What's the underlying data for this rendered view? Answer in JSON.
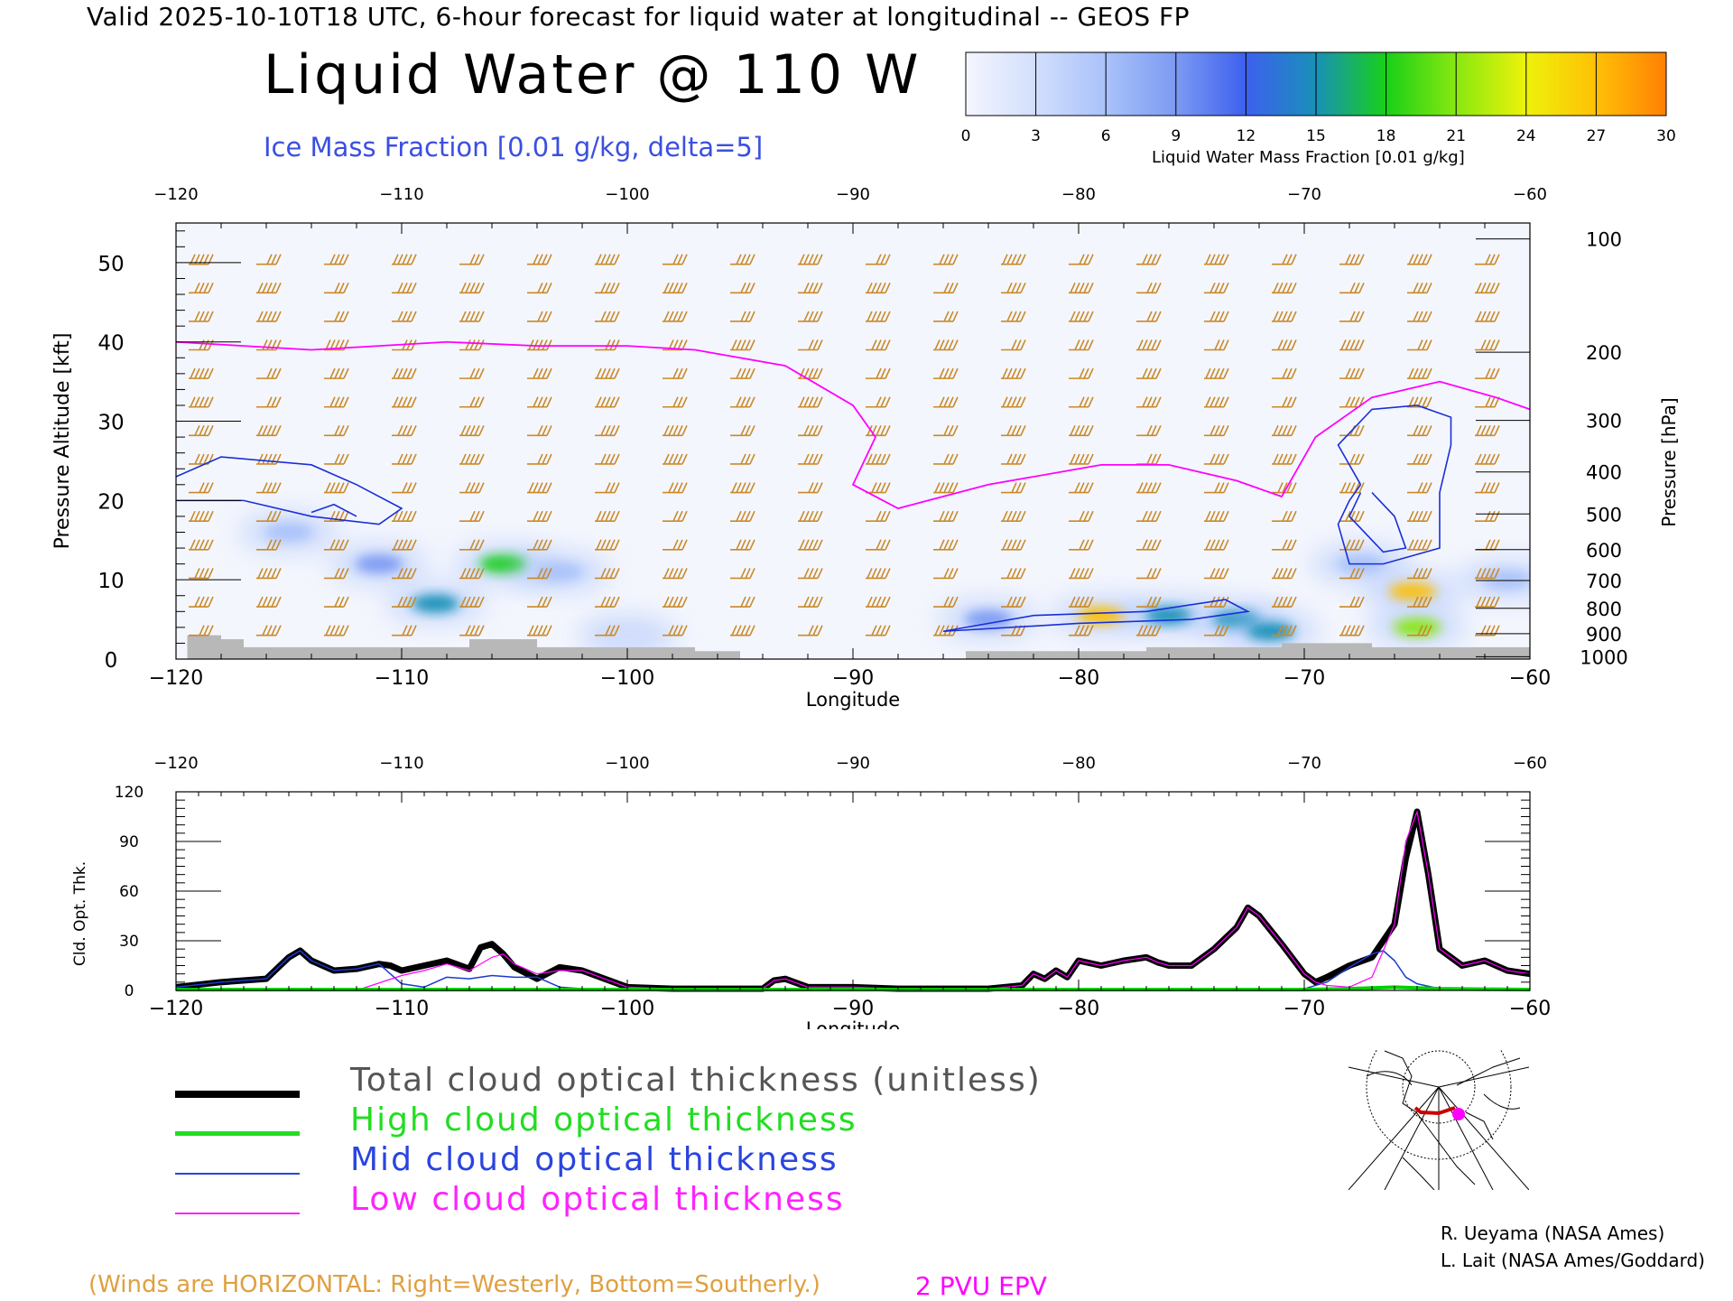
{
  "header": {
    "valid_line": "Valid 2025-10-10T18 UTC, 6-hour forecast for liquid water at longitudinal -- GEOS FP",
    "title": "Liquid Water @ 110 W",
    "ice_caption": "Ice Mass Fraction [0.01 g/kg, delta=5]"
  },
  "colorbar": {
    "ticks": [
      "0",
      "3",
      "6",
      "9",
      "12",
      "15",
      "18",
      "21",
      "24",
      "27",
      "30"
    ],
    "label": "Liquid Water Mass Fraction [0.01 g/kg]",
    "colors": [
      "#f4f6fe",
      "#d2defc",
      "#a9c2fa",
      "#7c9af2",
      "#3d60ef",
      "#1890b8",
      "#18d018",
      "#88e810",
      "#eef20a",
      "#ffc006",
      "#ff8004"
    ]
  },
  "chart_data": [
    {
      "type": "heatmap",
      "xlabel": "Longitude",
      "ylabel_left": "Pressure Altitude [kft]",
      "ylabel_right": "Pressure [hPa]",
      "xlim": [
        -120,
        -60
      ],
      "ylim": [
        0,
        55
      ],
      "x_ticks": [
        -120,
        -110,
        -100,
        -90,
        -80,
        -70,
        -60
      ],
      "x_tick_labels": [
        "−120",
        "−110",
        "−100",
        "−90",
        "−80",
        "−70",
        "−60"
      ],
      "y_ticks": [
        0,
        10,
        20,
        30,
        40,
        50
      ],
      "pressure_ticks": [
        {
          "hPa": "100",
          "kft": 53.0
        },
        {
          "hPa": "200",
          "kft": 38.7
        },
        {
          "hPa": "300",
          "kft": 30.1
        },
        {
          "hPa": "400",
          "kft": 23.6
        },
        {
          "hPa": "500",
          "kft": 18.3
        },
        {
          "hPa": "600",
          "kft": 13.8
        },
        {
          "hPa": "700",
          "kft": 9.9
        },
        {
          "hPa": "800",
          "kft": 6.4
        },
        {
          "hPa": "900",
          "kft": 3.2
        },
        {
          "hPa": "1000",
          "kft": 0.3
        }
      ],
      "liquid_water_blobs": [
        {
          "lon": -115,
          "kft": 16,
          "value": 6
        },
        {
          "lon": -111,
          "kft": 12,
          "value": 9
        },
        {
          "lon": -108.5,
          "kft": 7,
          "value": 16
        },
        {
          "lon": -105.5,
          "kft": 12,
          "value": 18
        },
        {
          "lon": -103,
          "kft": 11,
          "value": 6
        },
        {
          "lon": -100,
          "kft": 3,
          "value": 3
        },
        {
          "lon": -84,
          "kft": 5,
          "value": 9
        },
        {
          "lon": -79,
          "kft": 5.5,
          "value": 26
        },
        {
          "lon": -76,
          "kft": 5.5,
          "value": 16
        },
        {
          "lon": -73,
          "kft": 5,
          "value": 14
        },
        {
          "lon": -71.5,
          "kft": 3.5,
          "value": 16
        },
        {
          "lon": -67.5,
          "kft": 12,
          "value": 6
        },
        {
          "lon": -65.2,
          "kft": 8.5,
          "value": 26
        },
        {
          "lon": -65,
          "kft": 4,
          "value": 20
        },
        {
          "lon": -61,
          "kft": 10,
          "value": 6
        }
      ],
      "ice_contours": [
        {
          "points": [
            [
              -120,
              23
            ],
            [
              -118,
              25.5
            ],
            [
              -114,
              24.5
            ],
            [
              -112,
              22
            ],
            [
              -110,
              19
            ],
            [
              -111,
              17
            ],
            [
              -114,
              18
            ],
            [
              -117,
              20
            ],
            [
              -120,
              20
            ]
          ]
        },
        {
          "points": [
            [
              -114,
              18.5
            ],
            [
              -113,
              19.5
            ],
            [
              -112,
              18
            ]
          ]
        },
        {
          "points": [
            [
              -67.5,
              22
            ],
            [
              -68.5,
              27
            ],
            [
              -67,
              31.5
            ],
            [
              -65,
              32
            ],
            [
              -63.5,
              30.5
            ],
            [
              -63.5,
              27
            ],
            [
              -64,
              21
            ],
            [
              -64,
              14
            ],
            [
              -66.5,
              12
            ],
            [
              -68,
              12
            ],
            [
              -68.5,
              17
            ],
            [
              -68,
              20
            ],
            [
              -67.5,
              22
            ]
          ]
        },
        {
          "points": [
            [
              -67.5,
              21
            ],
            [
              -68,
              18
            ],
            [
              -66.5,
              13.5
            ],
            [
              -65.5,
              14
            ],
            [
              -66,
              18
            ],
            [
              -67,
              21
            ]
          ]
        },
        {
          "points": [
            [
              -86,
              3.5
            ],
            [
              -82,
              5.5
            ],
            [
              -77,
              6
            ],
            [
              -73.5,
              7.5
            ],
            [
              -72.5,
              6
            ],
            [
              -75,
              5
            ],
            [
              -80,
              4.5
            ],
            [
              -86,
              3.5
            ]
          ]
        }
      ],
      "epv_2pvu": [
        [
          -120,
          40
        ],
        [
          -117,
          39.5
        ],
        [
          -114,
          39
        ],
        [
          -111,
          39.5
        ],
        [
          -108,
          40
        ],
        [
          -104,
          39.5
        ],
        [
          -100,
          39.5
        ],
        [
          -97,
          39
        ],
        [
          -93,
          37
        ],
        [
          -90,
          32
        ],
        [
          -89,
          28
        ],
        [
          -90,
          22
        ],
        [
          -88,
          19
        ],
        [
          -84,
          22
        ],
        [
          -79,
          24.5
        ],
        [
          -76,
          24.5
        ],
        [
          -73,
          22.5
        ],
        [
          -71,
          20.5
        ],
        [
          -69.5,
          28
        ],
        [
          -67,
          33
        ],
        [
          -64,
          35
        ],
        [
          -61.5,
          33
        ],
        [
          -60,
          31.5
        ]
      ],
      "wind_barb_columns": [
        -119,
        -116,
        -113,
        -110,
        -107,
        -104,
        -101,
        -98,
        -95,
        -92,
        -89,
        -86,
        -83,
        -80,
        -77,
        -74,
        -71,
        -68,
        -65,
        -62
      ],
      "terrain_kft": [
        [
          -120,
          0
        ],
        [
          -119.5,
          3
        ],
        [
          -118,
          2.5
        ],
        [
          -117,
          1.5
        ],
        [
          -114,
          1.5
        ],
        [
          -110,
          1.5
        ],
        [
          -107,
          2.5
        ],
        [
          -104,
          1.5
        ],
        [
          -99,
          1.5
        ],
        [
          -97,
          1
        ],
        [
          -95,
          0
        ],
        [
          -85,
          1
        ],
        [
          -77,
          1.5
        ],
        [
          -71,
          2
        ],
        [
          -67,
          1.5
        ],
        [
          -62,
          1.5
        ],
        [
          -60,
          1.2
        ]
      ]
    },
    {
      "type": "line",
      "xlabel": "Longitude",
      "ylabel": "Cld. Opt. Thk.",
      "xlim": [
        -120,
        -60
      ],
      "ylim": [
        0,
        120
      ],
      "x_ticks": [
        -120,
        -110,
        -100,
        -90,
        -80,
        -70,
        -60
      ],
      "x_tick_labels": [
        "−120",
        "−110",
        "−100",
        "−90",
        "−80",
        "−70",
        "−60"
      ],
      "y_ticks": [
        0,
        30,
        60,
        90,
        120
      ],
      "series": [
        {
          "name": "Total cloud optical thickness (unitless)",
          "color": "#000000",
          "x": [
            -120,
            -118,
            -116,
            -115,
            -114.5,
            -114,
            -113,
            -112,
            -111,
            -110.5,
            -110,
            -109,
            -108,
            -107,
            -106.5,
            -106,
            -105.5,
            -105,
            -104,
            -103,
            -102,
            -101,
            -100,
            -98,
            -96,
            -94,
            -93.5,
            -93,
            -92,
            -90,
            -88,
            -86,
            -84,
            -82.5,
            -82,
            -81.5,
            -81,
            -80.5,
            -80,
            -79,
            -78,
            -77,
            -76.5,
            -76,
            -75,
            -74,
            -73,
            -72.5,
            -72,
            -71,
            -70,
            -69.5,
            -69,
            -68,
            -67,
            -66,
            -65.5,
            -65,
            -64.5,
            -64,
            -63,
            -62,
            -61,
            -60
          ],
          "y": [
            2,
            5,
            7,
            20,
            24,
            18,
            12,
            13,
            16,
            15,
            12,
            15,
            18,
            13,
            26,
            28,
            22,
            14,
            7,
            14,
            12,
            7,
            2,
            1,
            1,
            1,
            6,
            7,
            2,
            2,
            1,
            1,
            1,
            3,
            10,
            7,
            12,
            8,
            18,
            15,
            18,
            20,
            17,
            15,
            15,
            25,
            38,
            50,
            45,
            28,
            10,
            5,
            8,
            15,
            20,
            40,
            80,
            108,
            70,
            25,
            15,
            18,
            12,
            10
          ]
        },
        {
          "name": "High cloud optical thickness",
          "color": "#00d000",
          "x": [
            -120,
            -70,
            -68,
            -66,
            -64,
            -60
          ],
          "y": [
            0.5,
            0.5,
            1,
            2,
            1,
            0.5
          ]
        },
        {
          "name": "Mid cloud optical thickness",
          "color": "#1a3ad0",
          "x": [
            -120,
            -118,
            -116,
            -115,
            -114.5,
            -114,
            -113,
            -112,
            -111,
            -110,
            -109,
            -108,
            -107,
            -106,
            -105,
            -104,
            -103,
            -102,
            -100,
            -90,
            -80,
            -72,
            -70,
            -69,
            -68,
            -67,
            -66.5,
            -66,
            -65.5,
            -65,
            -64,
            -62,
            -60
          ],
          "y": [
            2,
            5,
            7,
            20,
            24,
            18,
            12,
            13,
            16,
            4,
            2,
            8,
            7,
            9,
            8,
            8,
            2,
            1,
            0.5,
            0.5,
            0.5,
            0.5,
            1,
            5,
            14,
            22,
            24,
            18,
            8,
            4,
            1,
            0.5,
            0.5
          ]
        },
        {
          "name": "Low cloud optical thickness",
          "color": "#ff00ff",
          "x": [
            -120,
            -112,
            -110,
            -109,
            -108,
            -107,
            -106,
            -105.5,
            -105,
            -104,
            -103,
            -102,
            -101,
            -100,
            -98,
            -96,
            -94,
            -93.5,
            -93,
            -92,
            -90,
            -88,
            -86,
            -84,
            -82.5,
            -82,
            -81.5,
            -81,
            -80.5,
            -80,
            -79,
            -78,
            -77,
            -76.5,
            -76,
            -75,
            -74,
            -73,
            -72.5,
            -72,
            -71,
            -70,
            -69.5,
            -69,
            -68,
            -67,
            -66,
            -65.5,
            -65,
            -64.5,
            -64,
            -63,
            -62,
            -61,
            -60
          ],
          "y": [
            0,
            0,
            9,
            12,
            16,
            12,
            20,
            22,
            16,
            10,
            12,
            12,
            7,
            2,
            1,
            1,
            1,
            6,
            7,
            2,
            2,
            1,
            1,
            1,
            3,
            10,
            7,
            12,
            8,
            18,
            15,
            18,
            20,
            17,
            15,
            15,
            25,
            38,
            50,
            45,
            28,
            10,
            5,
            3,
            2,
            8,
            40,
            90,
            108,
            70,
            25,
            15,
            18,
            12,
            10
          ]
        }
      ]
    }
  ],
  "legend": {
    "total": "Total cloud optical thickness (unitless)",
    "high": "High cloud optical thickness",
    "mid": "Mid cloud optical thickness",
    "low": "Low cloud optical thickness",
    "total_color": "#000000",
    "high_color": "#22dd22",
    "mid_color": "#2a44e0",
    "low_color": "#ff22ff"
  },
  "footer": {
    "credit_1": "R. Ueyama (NASA Ames)",
    "credit_2": "L. Lait (NASA Ames/Goddard)",
    "winds_note": "(Winds are HORIZONTAL: Right=Westerly, Bottom=Southerly.)",
    "pvu_note": "2 PVU EPV"
  },
  "locator_map": {
    "icon": "polar-stereographic-globe-icon",
    "marker_color": "#ff00ff",
    "section_color": "#cc0000"
  }
}
